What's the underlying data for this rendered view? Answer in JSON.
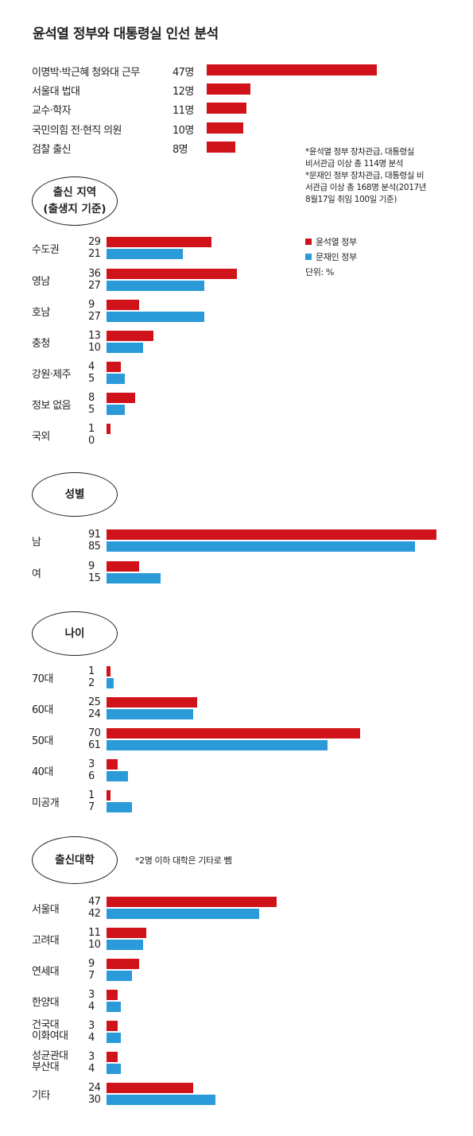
{
  "title": "윤석열 정부와 대통령실 인선 분석",
  "colors": {
    "yoon": "#d0121b",
    "moon": "#2a9ad9",
    "text": "#231f20"
  },
  "legend": {
    "yoon": "윤석열 정부",
    "moon": "문재인 정부",
    "unit": "단위: %"
  },
  "notes": {
    "n1": "*윤석열 정부 장차관급, 대통령실",
    "n2": "비서관급 이상 총 114명 분석",
    "n3": "*문재인 정부 장차관급, 대통령실 비",
    "n4": "서관급 이상 총 168명 분석(2017년",
    "n5": "8월17일 취임 100일 기준)"
  },
  "sections": {
    "region_line1": "출신 지역",
    "region_line2": "(출생지 기준)",
    "gender": "성별",
    "age": "나이",
    "univ": "출신대학",
    "univ_note": "*2명 이하 대학은 기타로 뺌"
  },
  "chart_data": [
    {
      "type": "bar",
      "orientation": "horizontal",
      "id": "background",
      "categories": [
        "이명박·박근혜 청와대 근무",
        "서울대 법대",
        "교수·학자",
        "국민의힘 전·현직 의원",
        "검찰 출신"
      ],
      "series": [
        {
          "key": "yoon",
          "values": [
            47,
            12,
            11,
            10,
            8
          ]
        }
      ],
      "value_labels": [
        "47명",
        "12명",
        "11명",
        "10명",
        "8명"
      ]
    },
    {
      "type": "bar",
      "orientation": "horizontal",
      "id": "region",
      "categories": [
        "수도권",
        "영남",
        "호남",
        "충청",
        "강원·제주",
        "정보 없음",
        "국외"
      ],
      "series": [
        {
          "key": "yoon",
          "values": [
            29,
            36,
            9,
            13,
            4,
            8,
            1
          ]
        },
        {
          "key": "moon",
          "values": [
            21,
            27,
            27,
            10,
            5,
            5,
            0
          ]
        }
      ]
    },
    {
      "type": "bar",
      "orientation": "horizontal",
      "id": "gender",
      "categories": [
        "남",
        "여"
      ],
      "series": [
        {
          "key": "yoon",
          "values": [
            91,
            9
          ]
        },
        {
          "key": "moon",
          "values": [
            85,
            15
          ]
        }
      ]
    },
    {
      "type": "bar",
      "orientation": "horizontal",
      "id": "age",
      "categories": [
        "70대",
        "60대",
        "50대",
        "40대",
        "미공개"
      ],
      "series": [
        {
          "key": "yoon",
          "values": [
            1,
            25,
            70,
            3,
            1
          ]
        },
        {
          "key": "moon",
          "values": [
            2,
            24,
            61,
            6,
            7
          ]
        }
      ]
    },
    {
      "type": "bar",
      "orientation": "horizontal",
      "id": "univ",
      "categories": [
        "서울대",
        "고려대",
        "연세대",
        "한양대",
        "건국대\n이화여대",
        "성균관대\n부산대",
        "기타"
      ],
      "series": [
        {
          "key": "yoon",
          "values": [
            47,
            11,
            9,
            3,
            3,
            3,
            24
          ]
        },
        {
          "key": "moon",
          "values": [
            42,
            10,
            7,
            4,
            4,
            4,
            30
          ]
        }
      ]
    }
  ]
}
